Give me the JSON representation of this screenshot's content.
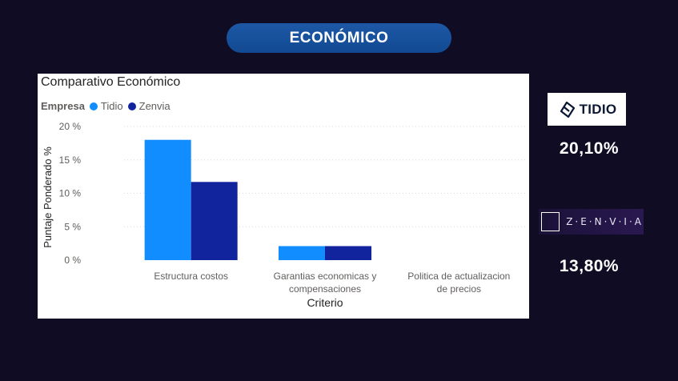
{
  "header": {
    "title": "ECONÓMICO"
  },
  "chart_data": {
    "type": "bar",
    "title": "Comparativo Económico",
    "legend_title": "Empresa",
    "categories": [
      "Estructura costos",
      "Garantias economicas y compensaciones",
      "Politica de actualizacion de precios"
    ],
    "category_lines": [
      [
        "Estructura costos"
      ],
      [
        "Garantias economicas y",
        "compensaciones"
      ],
      [
        "Politica de actualizacion",
        "de precios"
      ]
    ],
    "series": [
      {
        "name": "Tidio",
        "color": "#118dff",
        "values": [
          18.0,
          2.1,
          0
        ]
      },
      {
        "name": "Zenvia",
        "color": "#12239e",
        "values": [
          11.7,
          2.1,
          0
        ]
      }
    ],
    "xlabel": "Criterio",
    "ylabel": "Puntaje Ponderado %",
    "ylim": [
      0,
      20
    ],
    "yticks": [
      0,
      5,
      10,
      15,
      20
    ],
    "ytick_labels": [
      "0 %",
      "5 %",
      "10 %",
      "15 %",
      "20 %"
    ],
    "grid": true,
    "legend_position": "top-left"
  },
  "side": {
    "tidio": {
      "logo_text": "TIDIO",
      "score": "20,10%"
    },
    "zenvia": {
      "logo_text": "Z·E·N·V·I·A",
      "score": "13,80%"
    }
  }
}
